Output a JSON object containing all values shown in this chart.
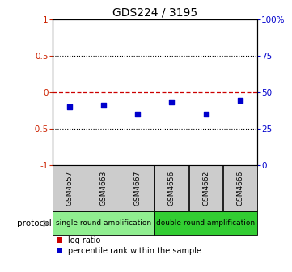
{
  "title": "GDS224 / 3195",
  "samples": [
    "GSM4657",
    "GSM4663",
    "GSM4667",
    "GSM4656",
    "GSM4662",
    "GSM4666"
  ],
  "percentile_left": [
    -0.2,
    -0.18,
    -0.3,
    -0.14,
    -0.3,
    -0.12
  ],
  "ylim_left": [
    -1,
    1
  ],
  "ylim_right": [
    0,
    100
  ],
  "yticks_left": [
    -1,
    -0.5,
    0,
    0.5,
    1
  ],
  "ytick_labels_left": [
    "-1",
    "-0.5",
    "0",
    "0.5",
    "1"
  ],
  "yticks_right": [
    0,
    25,
    50,
    75,
    100
  ],
  "ytick_labels_right": [
    "0",
    "25",
    "50",
    "75",
    "100%"
  ],
  "hlines_black": [
    0.5,
    -0.5
  ],
  "hline_red": 0,
  "protocols": [
    {
      "label": "single round amplification",
      "start": 0,
      "end": 2,
      "color": "#90EE90"
    },
    {
      "label": "double round amplification",
      "start": 3,
      "end": 5,
      "color": "#32CD32"
    }
  ],
  "protocol_label": "protocol",
  "legend_items": [
    {
      "color": "#CC0000",
      "label": "log ratio"
    },
    {
      "color": "#0000CC",
      "label": "percentile rank within the sample"
    }
  ],
  "blue_color": "#0000CC",
  "red_color": "#CC0000",
  "gray_box_color": "#CCCCCC",
  "background_color": "#FFFFFF",
  "axis_label_color_left": "#CC2200",
  "axis_label_color_right": "#0000CC",
  "title_fontsize": 10,
  "tick_fontsize": 7.5,
  "sample_fontsize": 6.5,
  "protocol_fontsize": 6.5,
  "legend_fontsize": 7
}
